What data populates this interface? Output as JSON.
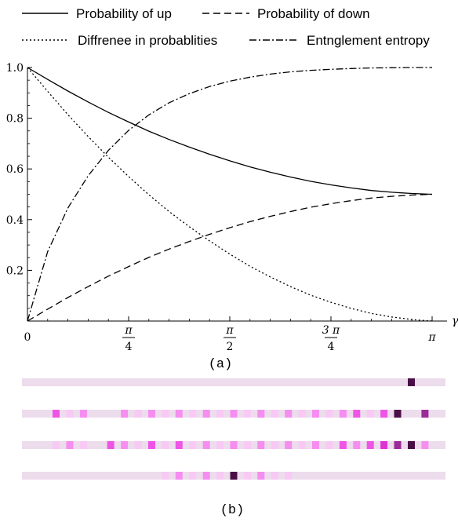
{
  "chart_data": [
    {
      "type": "line",
      "panel_label": "(a)",
      "xlabel": "γ",
      "xlim": [
        0,
        3.14159265
      ],
      "ylim": [
        0,
        1.0
      ],
      "x_ticks": [
        {
          "value": 0,
          "num": "0",
          "den": ""
        },
        {
          "value": 0.785398,
          "num": "π",
          "den": "4"
        },
        {
          "value": 1.570796,
          "num": "π",
          "den": "2"
        },
        {
          "value": 2.356194,
          "num": "3 π",
          "den": "4"
        },
        {
          "value": 3.141593,
          "num": "π",
          "den": ""
        }
      ],
      "y_ticks": [
        "0.2",
        "0.4",
        "0.6",
        "0.8",
        "1.0"
      ],
      "legend_position": "top",
      "x": [
        0,
        0.15708,
        0.31416,
        0.47124,
        0.62832,
        0.7854,
        0.94248,
        1.09956,
        1.25664,
        1.41372,
        1.5708,
        1.72788,
        1.88496,
        2.04204,
        2.19911,
        2.35619,
        2.51327,
        2.67035,
        2.82743,
        2.98451,
        3.14159
      ],
      "series": [
        {
          "name": "Probability of up",
          "dash": "solid",
          "values": [
            1.0,
            0.953,
            0.907,
            0.864,
            0.823,
            0.785,
            0.749,
            0.716,
            0.686,
            0.658,
            0.632,
            0.608,
            0.587,
            0.568,
            0.551,
            0.537,
            0.525,
            0.515,
            0.508,
            0.503,
            0.5
          ]
        },
        {
          "name": "Probability of down",
          "dash": "dashed",
          "values": [
            0.0,
            0.047,
            0.093,
            0.136,
            0.177,
            0.215,
            0.251,
            0.284,
            0.314,
            0.342,
            0.368,
            0.392,
            0.413,
            0.432,
            0.449,
            0.463,
            0.475,
            0.485,
            0.492,
            0.497,
            0.5
          ]
        },
        {
          "name": "Diffrenee in probablities",
          "dash": "dotted",
          "values": [
            1.0,
            0.906,
            0.814,
            0.728,
            0.646,
            0.57,
            0.498,
            0.432,
            0.372,
            0.316,
            0.264,
            0.216,
            0.174,
            0.136,
            0.102,
            0.074,
            0.05,
            0.03,
            0.016,
            0.006,
            0.0
          ]
        },
        {
          "name": "Entnglement entropy",
          "dash": "dashdot",
          "values": [
            0.0,
            0.274,
            0.446,
            0.573,
            0.673,
            0.752,
            0.813,
            0.861,
            0.897,
            0.925,
            0.946,
            0.962,
            0.974,
            0.983,
            0.989,
            0.993,
            0.996,
            0.998,
            0.999,
            1.0,
            1.0
          ]
        }
      ]
    },
    {
      "type": "heatmap",
      "panel_label": "(b)",
      "columns": 31,
      "base_color": "#ecdcec",
      "palette": {
        "1": "#f8c9f4",
        "2": "#f58ef0",
        "3": "#ee55e6",
        "4": "#dd33d4",
        "5": "#9a2b96",
        "6": "#4a0f47"
      },
      "rows": [
        [
          0,
          0,
          0,
          0,
          0,
          0,
          0,
          0,
          0,
          0,
          0,
          0,
          0,
          0,
          0,
          0,
          0,
          0,
          0,
          0,
          0,
          0,
          0,
          0,
          0,
          0,
          0,
          0,
          6,
          0,
          0
        ],
        [
          0,
          0,
          3,
          1,
          2,
          0,
          0,
          2,
          1,
          2,
          1,
          2,
          1,
          2,
          1,
          2,
          1,
          2,
          1,
          2,
          1,
          2,
          1,
          2,
          3,
          1,
          3,
          6,
          0,
          5,
          0
        ],
        [
          0,
          0,
          1,
          2,
          1,
          0,
          3,
          2,
          1,
          3,
          1,
          3,
          1,
          2,
          1,
          2,
          1,
          2,
          1,
          2,
          1,
          2,
          1,
          3,
          2,
          3,
          4,
          5,
          6,
          2,
          0
        ],
        [
          0,
          0,
          0,
          0,
          0,
          0,
          0,
          0,
          0,
          0,
          1,
          2,
          1,
          2,
          1,
          6,
          1,
          2,
          1,
          1,
          0,
          0,
          0,
          0,
          0,
          0,
          0,
          0,
          0,
          0,
          0
        ]
      ]
    }
  ]
}
